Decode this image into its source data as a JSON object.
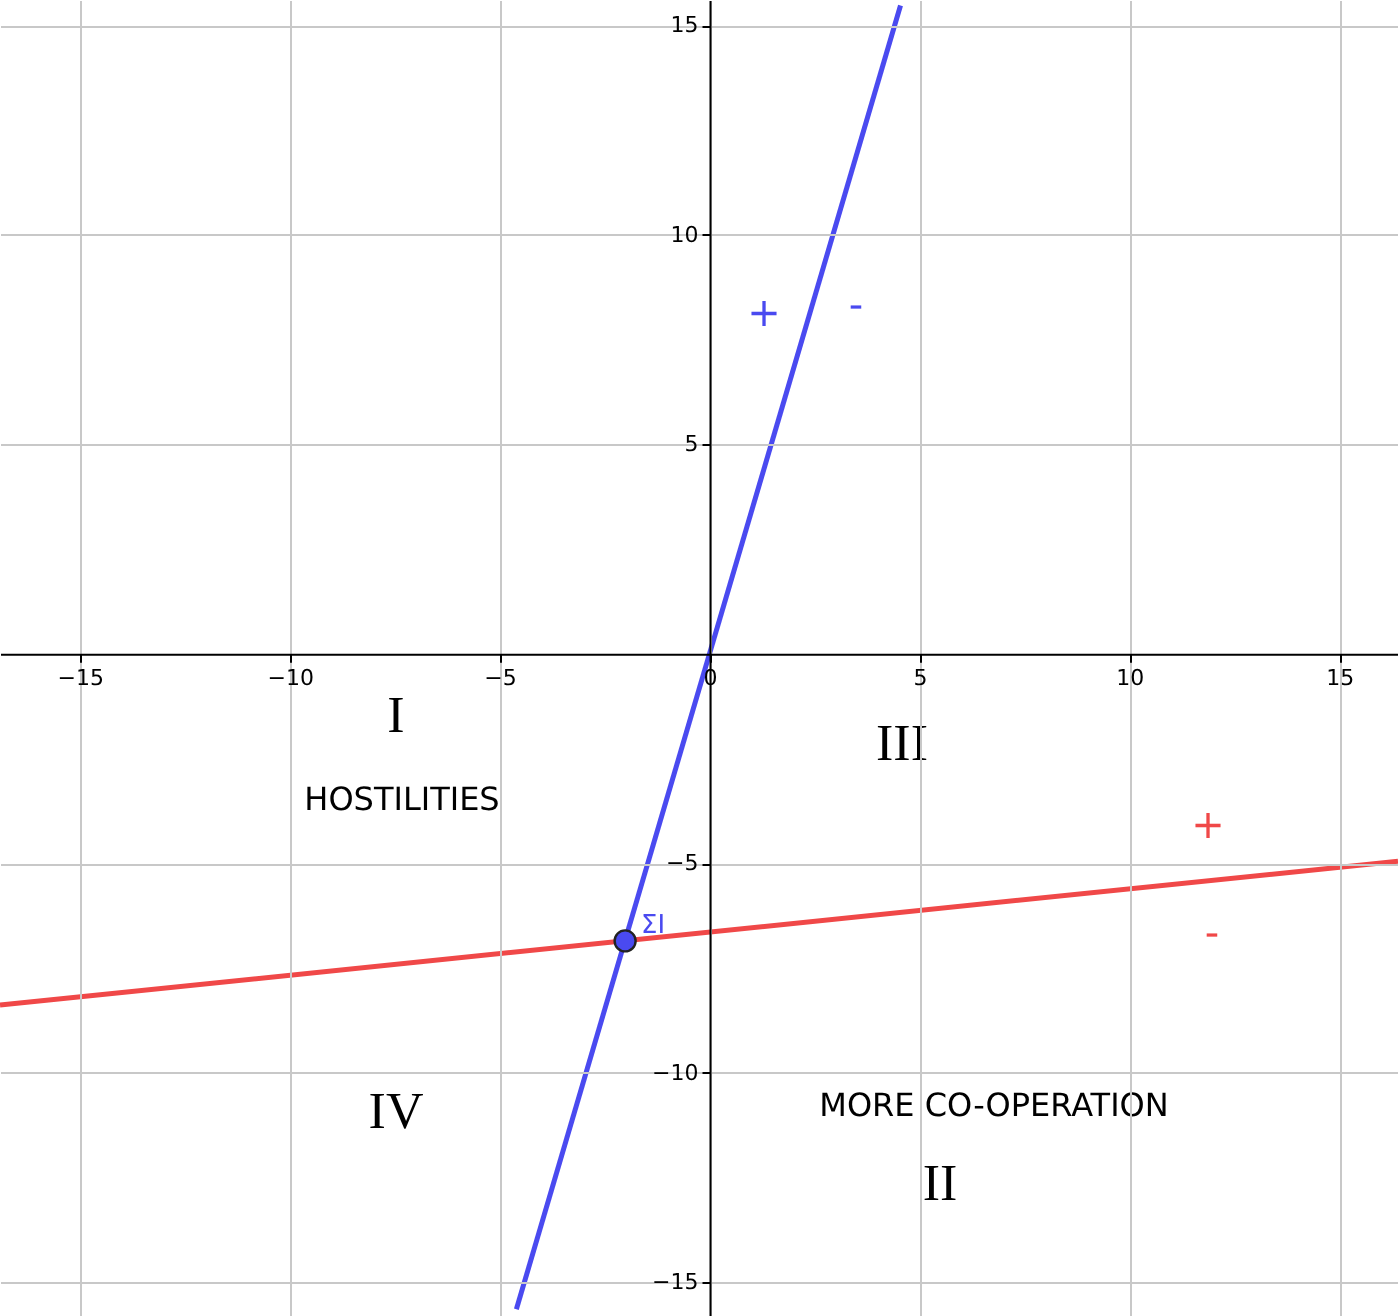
{
  "chart_data": {
    "type": "line",
    "xlim": [
      -16.9,
      16.4
    ],
    "ylim": [
      -15.8,
      15.6
    ],
    "xticks": [
      -15,
      -10,
      -5,
      0,
      5,
      10,
      15
    ],
    "yticks": [
      -15,
      -10,
      -5,
      5,
      10,
      15
    ],
    "grid": true,
    "series": [
      {
        "color": "#4a4af0",
        "x": [
          -4.6,
          4.55
        ],
        "values": [
          -15.64,
          15.47
        ]
      },
      {
        "color": "#f04848",
        "x": [
          -16.9,
          16.4
        ],
        "values": [
          -8.38,
          -4.95
        ]
      },
      {
        "type": "scatter",
        "name": "ΣI",
        "color": "#4a4af0",
        "x": [
          -2.01
        ],
        "values": [
          -6.85
        ],
        "marker": "circle"
      }
    ],
    "annotations": [
      "+",
      "-",
      "+",
      "-",
      "I",
      "III",
      "HOSTILITIES",
      "IV",
      "MORE CO-OPERATION",
      "II"
    ]
  }
}
